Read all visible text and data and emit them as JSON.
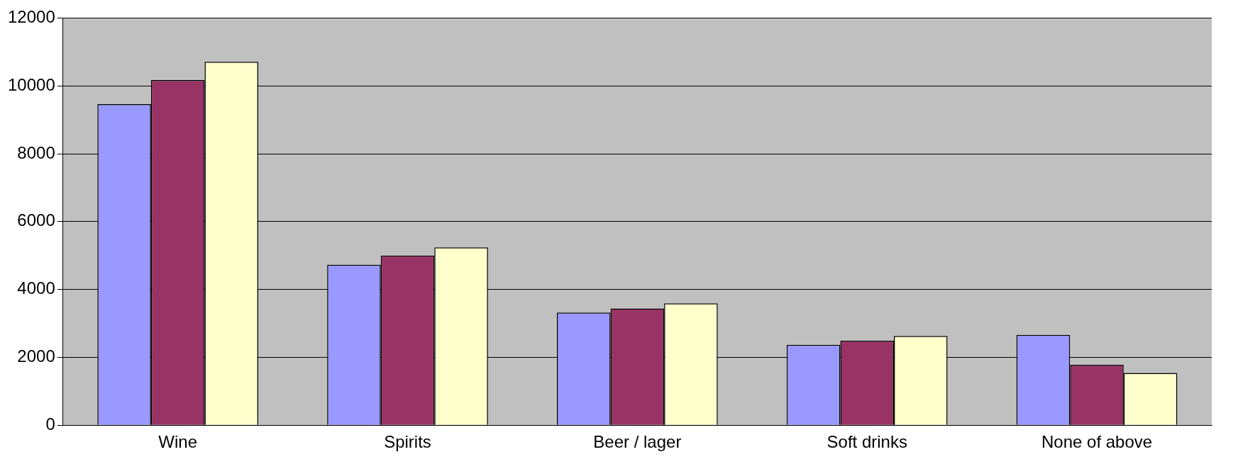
{
  "chart_data": {
    "type": "bar",
    "categories": [
      "Wine",
      "Spirits",
      "Beer / lager",
      "Soft drinks",
      "None of above"
    ],
    "series": [
      {
        "color": "#9999ff",
        "values": [
          9460,
          4730,
          3320,
          2370,
          2660
        ]
      },
      {
        "color": "#993366",
        "values": [
          10170,
          5000,
          3440,
          2490,
          1780
        ]
      },
      {
        "color": "#ffffcc",
        "values": [
          10710,
          5240,
          3590,
          2630,
          1540
        ]
      }
    ],
    "ylim": [
      0,
      12000
    ],
    "yticks": [
      0,
      2000,
      4000,
      6000,
      8000,
      10000,
      12000
    ],
    "grid": "y",
    "legend": false
  }
}
